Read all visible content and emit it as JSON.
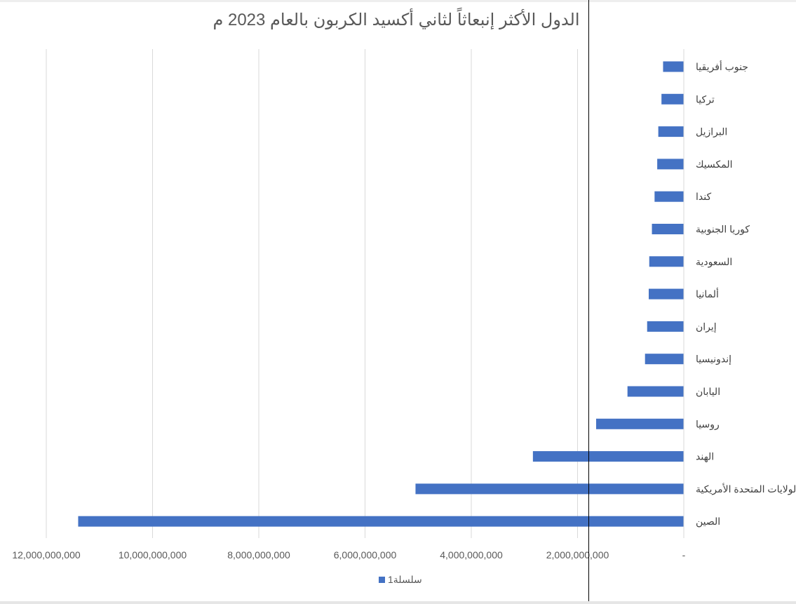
{
  "chart_data": {
    "type": "bar",
    "orientation": "horizontal",
    "title": "الدول الأكثر إنبعاثاً لثاني أكسيد الكربون بالعام 2023 م",
    "categories": [
      "جنوب أفريقيا",
      "تركيا",
      "البرازيل",
      "المكسيك",
      "كندا",
      "كوريا الجنوبية",
      "السعودية",
      "ألمانيا",
      "إيران",
      "إندونيسيا",
      "اليابان",
      "روسيا",
      "الهند",
      "الولايات المتحدة الأمريكية",
      "الصين"
    ],
    "series": [
      {
        "name": "سلسلة1",
        "color": "#4472C4",
        "values": [
          390000000,
          420000000,
          480000000,
          500000000,
          550000000,
          600000000,
          650000000,
          660000000,
          690000000,
          730000000,
          1060000000,
          1650000000,
          2840000000,
          5050000000,
          11400000000
        ]
      }
    ],
    "xlim": [
      0,
      12000000000
    ],
    "xticks": [
      0,
      2000000000,
      4000000000,
      6000000000,
      8000000000,
      10000000000,
      12000000000
    ],
    "xtick_labels": [
      "-",
      "2,000,000,000",
      "4,000,000,000",
      "6,000,000,000",
      "8,000,000,000",
      "10,000,000,000",
      "12,000,000,000"
    ],
    "x_reversed": true,
    "grid": "vertical",
    "legend": "bottom",
    "gridline_color": "#d9d9d9"
  }
}
